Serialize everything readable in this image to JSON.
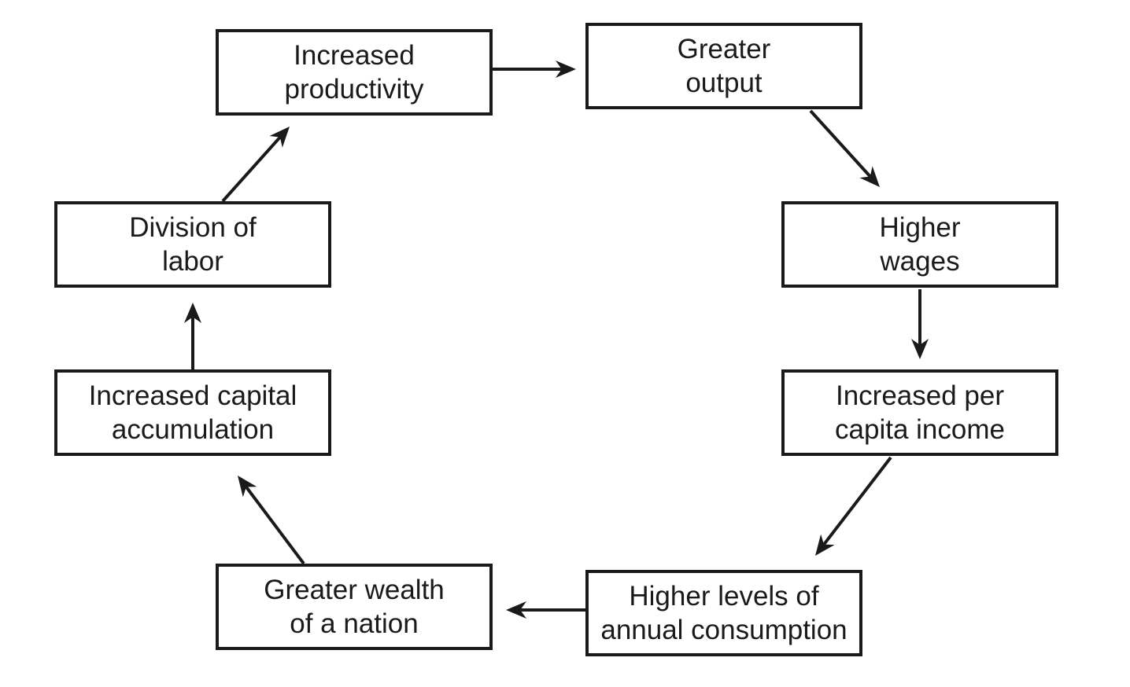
{
  "diagram": {
    "nodes": [
      {
        "id": "increased-productivity",
        "label": "Increased\nproductivity"
      },
      {
        "id": "greater-output",
        "label": "Greater\noutput"
      },
      {
        "id": "higher-wages",
        "label": "Higher\nwages"
      },
      {
        "id": "per-capita-income",
        "label": "Increased per\ncapita income"
      },
      {
        "id": "annual-consumption",
        "label": "Higher levels of\nannual consumption"
      },
      {
        "id": "wealth-of-nation",
        "label": "Greater wealth\nof a nation"
      },
      {
        "id": "capital-accumulation",
        "label": "Increased capital\naccumulation"
      },
      {
        "id": "division-of-labor",
        "label": "Division of\nlabor"
      }
    ],
    "edges": [
      {
        "from": "increased-productivity",
        "to": "greater-output"
      },
      {
        "from": "greater-output",
        "to": "higher-wages"
      },
      {
        "from": "higher-wages",
        "to": "per-capita-income"
      },
      {
        "from": "per-capita-income",
        "to": "annual-consumption"
      },
      {
        "from": "annual-consumption",
        "to": "wealth-of-nation"
      },
      {
        "from": "wealth-of-nation",
        "to": "capital-accumulation"
      },
      {
        "from": "capital-accumulation",
        "to": "division-of-labor"
      },
      {
        "from": "division-of-labor",
        "to": "increased-productivity"
      }
    ],
    "colors": {
      "stroke": "#1a1a1a",
      "background": "#ffffff"
    }
  }
}
